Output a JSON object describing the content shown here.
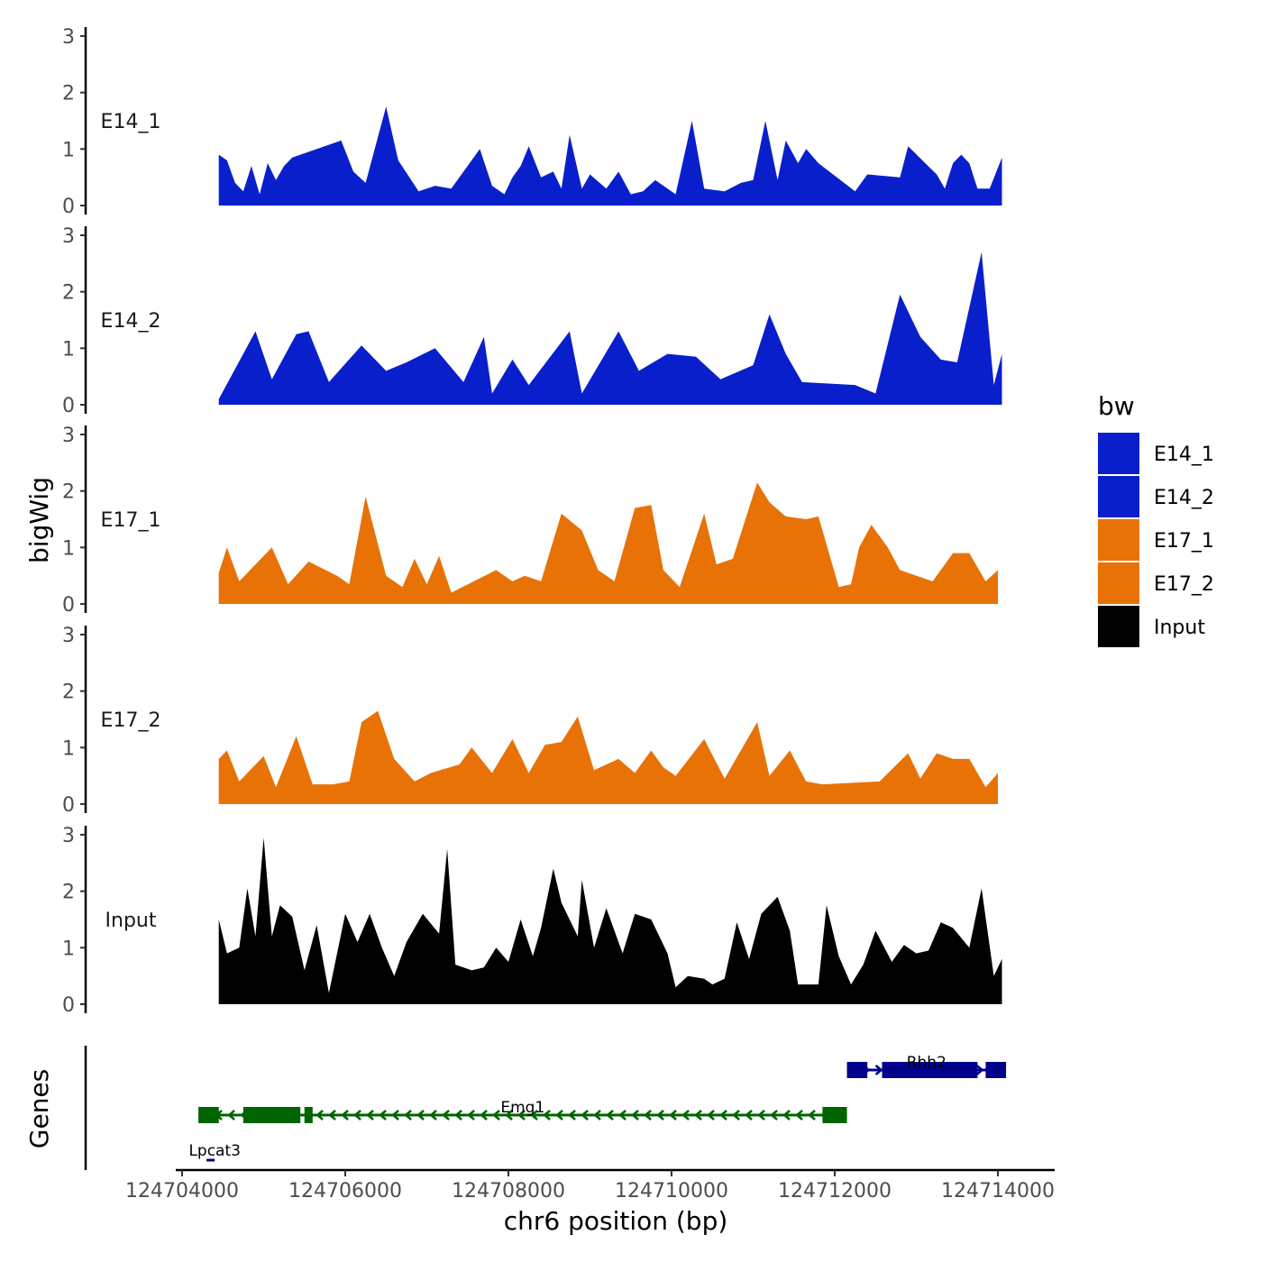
{
  "chart_data": {
    "type": "area",
    "region": {
      "chrom": "chr6",
      "start": 124704000,
      "end": 124714000
    },
    "xlabel": "chr6 position (bp)",
    "ylabel": "bigWig",
    "ylim": [
      0,
      3
    ],
    "y_ticks": [
      "0",
      "1",
      "2",
      "3"
    ],
    "x_ticks": [
      {
        "value": 124704000,
        "label": "124704000"
      },
      {
        "value": 124706000,
        "label": "124706000"
      },
      {
        "value": 124708000,
        "label": "124708000"
      },
      {
        "value": 124710000,
        "label": "124710000"
      },
      {
        "value": 124712000,
        "label": "124712000"
      },
      {
        "value": 124714000,
        "label": "124714000"
      }
    ],
    "legend": {
      "title": "bw",
      "entries": [
        {
          "name": "E14_1",
          "color": "#0a1fcc"
        },
        {
          "name": "E14_2",
          "color": "#0a1fcc"
        },
        {
          "name": "E17_1",
          "color": "#e87206"
        },
        {
          "name": "E17_2",
          "color": "#e87206"
        },
        {
          "name": "Input",
          "color": "#000000"
        }
      ]
    },
    "series": [
      {
        "name": "E14_1",
        "color": "#0a1fcc",
        "points": [
          [
            124704450,
            0.9
          ],
          [
            124704550,
            0.8
          ],
          [
            124704650,
            0.4
          ],
          [
            124704750,
            0.25
          ],
          [
            124704850,
            0.7
          ],
          [
            124704950,
            0.2
          ],
          [
            124705050,
            0.75
          ],
          [
            124705150,
            0.45
          ],
          [
            124705250,
            0.7
          ],
          [
            124705350,
            0.85
          ],
          [
            124705950,
            1.15
          ],
          [
            124706100,
            0.6
          ],
          [
            124706250,
            0.4
          ],
          [
            124706500,
            1.75
          ],
          [
            124706650,
            0.8
          ],
          [
            124706900,
            0.25
          ],
          [
            124707100,
            0.35
          ],
          [
            124707300,
            0.3
          ],
          [
            124707650,
            1.0
          ],
          [
            124707800,
            0.35
          ],
          [
            124707950,
            0.2
          ],
          [
            124708050,
            0.5
          ],
          [
            124708150,
            0.7
          ],
          [
            124708250,
            1.05
          ],
          [
            124708400,
            0.5
          ],
          [
            124708550,
            0.6
          ],
          [
            124708650,
            0.3
          ],
          [
            124708750,
            1.25
          ],
          [
            124708900,
            0.3
          ],
          [
            124709000,
            0.55
          ],
          [
            124709200,
            0.3
          ],
          [
            124709350,
            0.6
          ],
          [
            124709500,
            0.2
          ],
          [
            124709650,
            0.25
          ],
          [
            124709800,
            0.45
          ],
          [
            124710050,
            0.2
          ],
          [
            124710250,
            1.5
          ],
          [
            124710400,
            0.3
          ],
          [
            124710650,
            0.25
          ],
          [
            124710850,
            0.4
          ],
          [
            124711000,
            0.45
          ],
          [
            124711150,
            1.5
          ],
          [
            124711300,
            0.45
          ],
          [
            124711400,
            1.15
          ],
          [
            124711550,
            0.75
          ],
          [
            124711650,
            1.0
          ],
          [
            124711800,
            0.75
          ],
          [
            124712250,
            0.25
          ],
          [
            124712400,
            0.55
          ],
          [
            124712800,
            0.5
          ],
          [
            124712900,
            1.05
          ],
          [
            124713250,
            0.55
          ],
          [
            124713350,
            0.3
          ],
          [
            124713450,
            0.75
          ],
          [
            124713550,
            0.9
          ],
          [
            124713650,
            0.75
          ],
          [
            124713750,
            0.3
          ],
          [
            124713900,
            0.3
          ],
          [
            124714050,
            0.85
          ]
        ]
      },
      {
        "name": "E14_2",
        "color": "#0a1fcc",
        "points": [
          [
            124704450,
            0.1
          ],
          [
            124704900,
            1.3
          ],
          [
            124705100,
            0.45
          ],
          [
            124705400,
            1.25
          ],
          [
            124705550,
            1.3
          ],
          [
            124705800,
            0.4
          ],
          [
            124706200,
            1.05
          ],
          [
            124706500,
            0.6
          ],
          [
            124706750,
            0.75
          ],
          [
            124707100,
            1.0
          ],
          [
            124707450,
            0.4
          ],
          [
            124707700,
            1.2
          ],
          [
            124707800,
            0.2
          ],
          [
            124708050,
            0.8
          ],
          [
            124708250,
            0.35
          ],
          [
            124708750,
            1.3
          ],
          [
            124708900,
            0.2
          ],
          [
            124709350,
            1.3
          ],
          [
            124709600,
            0.6
          ],
          [
            124709950,
            0.9
          ],
          [
            124710300,
            0.85
          ],
          [
            124710600,
            0.45
          ],
          [
            124711000,
            0.7
          ],
          [
            124711200,
            1.6
          ],
          [
            124711400,
            0.9
          ],
          [
            124711600,
            0.4
          ],
          [
            124712250,
            0.35
          ],
          [
            124712500,
            0.2
          ],
          [
            124712800,
            1.95
          ],
          [
            124713050,
            1.2
          ],
          [
            124713300,
            0.8
          ],
          [
            124713500,
            0.75
          ],
          [
            124713800,
            2.7
          ],
          [
            124713950,
            0.35
          ],
          [
            124714050,
            0.9
          ]
        ]
      },
      {
        "name": "E17_1",
        "color": "#e87206",
        "points": [
          [
            124704450,
            0.55
          ],
          [
            124704550,
            1.0
          ],
          [
            124704700,
            0.4
          ],
          [
            124705100,
            1.0
          ],
          [
            124705300,
            0.35
          ],
          [
            124705550,
            0.75
          ],
          [
            124705900,
            0.5
          ],
          [
            124706050,
            0.35
          ],
          [
            124706250,
            1.9
          ],
          [
            124706500,
            0.5
          ],
          [
            124706700,
            0.3
          ],
          [
            124706850,
            0.8
          ],
          [
            124707000,
            0.35
          ],
          [
            124707150,
            0.85
          ],
          [
            124707300,
            0.2
          ],
          [
            124707850,
            0.6
          ],
          [
            124708050,
            0.4
          ],
          [
            124708200,
            0.5
          ],
          [
            124708400,
            0.4
          ],
          [
            124708650,
            1.6
          ],
          [
            124708900,
            1.3
          ],
          [
            124709100,
            0.6
          ],
          [
            124709300,
            0.4
          ],
          [
            124709550,
            1.7
          ],
          [
            124709750,
            1.75
          ],
          [
            124709900,
            0.6
          ],
          [
            124710100,
            0.3
          ],
          [
            124710400,
            1.6
          ],
          [
            124710550,
            0.7
          ],
          [
            124710750,
            0.8
          ],
          [
            124711050,
            2.15
          ],
          [
            124711200,
            1.8
          ],
          [
            124711400,
            1.55
          ],
          [
            124711650,
            1.5
          ],
          [
            124711800,
            1.55
          ],
          [
            124712050,
            0.3
          ],
          [
            124712200,
            0.35
          ],
          [
            124712300,
            1.0
          ],
          [
            124712450,
            1.4
          ],
          [
            124712650,
            1.0
          ],
          [
            124712800,
            0.6
          ],
          [
            124713200,
            0.4
          ],
          [
            124713450,
            0.9
          ],
          [
            124713650,
            0.9
          ],
          [
            124713850,
            0.4
          ],
          [
            124714000,
            0.6
          ]
        ]
      },
      {
        "name": "E17_2",
        "color": "#e87206",
        "points": [
          [
            124704450,
            0.8
          ],
          [
            124704550,
            0.95
          ],
          [
            124704700,
            0.4
          ],
          [
            124705000,
            0.85
          ],
          [
            124705150,
            0.3
          ],
          [
            124705400,
            1.2
          ],
          [
            124705600,
            0.35
          ],
          [
            124705850,
            0.35
          ],
          [
            124706050,
            0.4
          ],
          [
            124706200,
            1.45
          ],
          [
            124706400,
            1.65
          ],
          [
            124706600,
            0.8
          ],
          [
            124706850,
            0.4
          ],
          [
            124707050,
            0.55
          ],
          [
            124707400,
            0.7
          ],
          [
            124707550,
            1.0
          ],
          [
            124707800,
            0.55
          ],
          [
            124708050,
            1.15
          ],
          [
            124708250,
            0.55
          ],
          [
            124708450,
            1.05
          ],
          [
            124708650,
            1.1
          ],
          [
            124708850,
            1.55
          ],
          [
            124709050,
            0.6
          ],
          [
            124709350,
            0.8
          ],
          [
            124709550,
            0.55
          ],
          [
            124709750,
            0.95
          ],
          [
            124709900,
            0.65
          ],
          [
            124710050,
            0.5
          ],
          [
            124710400,
            1.15
          ],
          [
            124710650,
            0.45
          ],
          [
            124711050,
            1.45
          ],
          [
            124711200,
            0.5
          ],
          [
            124711450,
            0.95
          ],
          [
            124711650,
            0.4
          ],
          [
            124711850,
            0.35
          ],
          [
            124712550,
            0.4
          ],
          [
            124712900,
            0.9
          ],
          [
            124713050,
            0.45
          ],
          [
            124713250,
            0.9
          ],
          [
            124713450,
            0.8
          ],
          [
            124713650,
            0.8
          ],
          [
            124713850,
            0.3
          ],
          [
            124714000,
            0.55
          ]
        ]
      },
      {
        "name": "Input",
        "color": "#000000",
        "points": [
          [
            124704450,
            1.5
          ],
          [
            124704550,
            0.9
          ],
          [
            124704700,
            1.0
          ],
          [
            124704800,
            2.05
          ],
          [
            124704900,
            1.2
          ],
          [
            124705000,
            2.95
          ],
          [
            124705100,
            1.2
          ],
          [
            124705200,
            1.75
          ],
          [
            124705350,
            1.55
          ],
          [
            124705500,
            0.6
          ],
          [
            124705650,
            1.4
          ],
          [
            124705800,
            0.2
          ],
          [
            124706000,
            1.6
          ],
          [
            124706150,
            1.1
          ],
          [
            124706300,
            1.6
          ],
          [
            124706450,
            1.0
          ],
          [
            124706600,
            0.5
          ],
          [
            124706750,
            1.1
          ],
          [
            124706950,
            1.6
          ],
          [
            124707150,
            1.25
          ],
          [
            124707250,
            2.75
          ],
          [
            124707350,
            0.7
          ],
          [
            124707550,
            0.6
          ],
          [
            124707700,
            0.65
          ],
          [
            124707850,
            1.0
          ],
          [
            124708000,
            0.75
          ],
          [
            124708150,
            1.5
          ],
          [
            124708300,
            0.85
          ],
          [
            124708400,
            1.35
          ],
          [
            124708550,
            2.4
          ],
          [
            124708650,
            1.8
          ],
          [
            124708850,
            1.2
          ],
          [
            124708900,
            2.2
          ],
          [
            124709050,
            1.0
          ],
          [
            124709200,
            1.7
          ],
          [
            124709400,
            0.9
          ],
          [
            124709550,
            1.6
          ],
          [
            124709750,
            1.5
          ],
          [
            124709950,
            0.9
          ],
          [
            124710050,
            0.3
          ],
          [
            124710200,
            0.5
          ],
          [
            124710400,
            0.45
          ],
          [
            124710500,
            0.35
          ],
          [
            124710650,
            0.45
          ],
          [
            124710800,
            1.45
          ],
          [
            124710950,
            0.8
          ],
          [
            124711100,
            1.6
          ],
          [
            124711300,
            1.9
          ],
          [
            124711450,
            1.3
          ],
          [
            124711550,
            0.35
          ],
          [
            124711800,
            0.35
          ],
          [
            124711900,
            1.75
          ],
          [
            124712050,
            0.85
          ],
          [
            124712200,
            0.35
          ],
          [
            124712350,
            0.7
          ],
          [
            124712500,
            1.3
          ],
          [
            124712700,
            0.75
          ],
          [
            124712850,
            1.05
          ],
          [
            124713000,
            0.9
          ],
          [
            124713150,
            0.95
          ],
          [
            124713300,
            1.45
          ],
          [
            124713450,
            1.35
          ],
          [
            124713650,
            1.0
          ],
          [
            124713800,
            2.05
          ],
          [
            124713950,
            0.5
          ],
          [
            124714050,
            0.8
          ]
        ]
      }
    ],
    "genes_track": {
      "ylabel": "Genes",
      "genes": [
        {
          "name": "Rhh2",
          "strand": "+",
          "color": "#00008b",
          "start": 124712150,
          "end": 124714100,
          "exons": [
            [
              124712150,
              124712400
            ],
            [
              124712580,
              124713750
            ],
            [
              124713850,
              124714100
            ]
          ]
        },
        {
          "name": "Emg1",
          "strand": "-",
          "color": "#006400",
          "start": 124704200,
          "end": 124712150,
          "exons": [
            [
              124704200,
              124704450
            ],
            [
              124704750,
              124705450
            ],
            [
              124705500,
              124705600
            ],
            [
              124711850,
              124712150
            ]
          ]
        },
        {
          "name": "Lpcat3",
          "strand": "+",
          "color": "#00008b",
          "start": 124704300,
          "end": 124704400,
          "exons": []
        }
      ]
    }
  }
}
